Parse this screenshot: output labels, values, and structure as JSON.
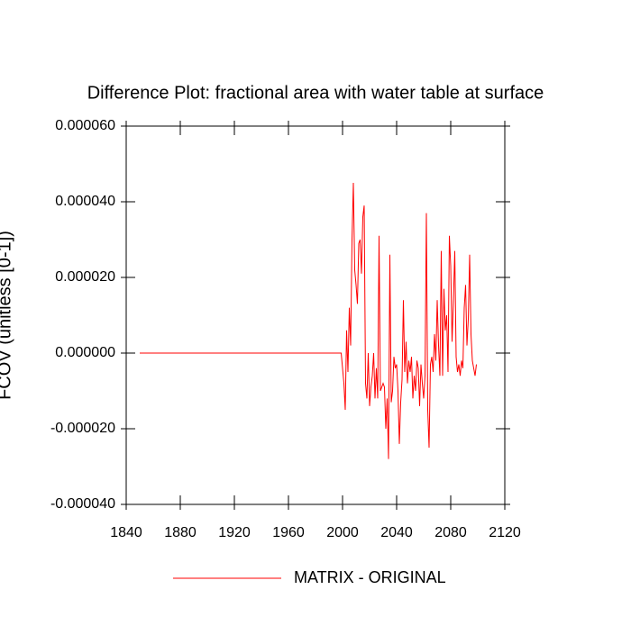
{
  "chart_data": {
    "type": "line",
    "title": "Difference Plot: fractional area with water table at surface",
    "y_label": "FCOV  (unitless [0-1])",
    "x": [
      1850,
      1999,
      2000,
      2001,
      2002,
      2003,
      2004,
      2005,
      2006,
      2007,
      2008,
      2009,
      2010,
      2011,
      2012,
      2013,
      2014,
      2015,
      2016,
      2017,
      2018,
      2019,
      2020,
      2021,
      2022,
      2023,
      2024,
      2025,
      2026,
      2027,
      2028,
      2029,
      2030,
      2031,
      2032,
      2033,
      2034,
      2035,
      2036,
      2037,
      2038,
      2039,
      2040,
      2041,
      2042,
      2043,
      2044,
      2045,
      2046,
      2047,
      2048,
      2049,
      2050,
      2051,
      2052,
      2053,
      2054,
      2055,
      2056,
      2057,
      2058,
      2059,
      2060,
      2061,
      2062,
      2063,
      2064,
      2065,
      2066,
      2067,
      2068,
      2069,
      2070,
      2071,
      2072,
      2073,
      2074,
      2075,
      2076,
      2077,
      2078,
      2079,
      2080,
      2081,
      2082,
      2083,
      2084,
      2085,
      2086,
      2087,
      2088,
      2089,
      2090,
      2091,
      2092,
      2093,
      2094,
      2095,
      2096,
      2097,
      2098,
      2099
    ],
    "series": [
      {
        "name": "MATRIX - ORIGINAL",
        "color": "#ff0000",
        "values": [
          0,
          0,
          -4e-06,
          -8e-06,
          -1.5e-05,
          6e-06,
          -5e-06,
          1.2e-05,
          2e-06,
          3e-05,
          4.5e-05,
          2.2e-05,
          1.8e-05,
          1.3e-05,
          2.9e-05,
          3e-05,
          2.1e-05,
          3.6e-05,
          3.9e-05,
          -8e-06,
          -1.2e-05,
          0,
          -1.4e-05,
          -9e-06,
          -6e-06,
          0,
          -1.2e-05,
          -4e-06,
          -1.2e-05,
          3.1e-05,
          -1e-05,
          -9e-06,
          -8e-06,
          -9e-06,
          -2e-05,
          -1.2e-05,
          -2.8e-05,
          2.6e-05,
          -1.3e-05,
          -1e-05,
          -1e-06,
          -4e-06,
          -3e-06,
          -1e-05,
          -2.4e-05,
          -1.3e-05,
          -7e-06,
          1.4e-05,
          -5e-06,
          3e-06,
          -8e-06,
          -2e-06,
          -5e-06,
          -1e-06,
          -1.2e-05,
          -6e-06,
          -1e-05,
          -2e-06,
          -4e-06,
          -1.4e-05,
          -3e-06,
          -8e-06,
          -1.2e-05,
          -6e-06,
          3.7e-05,
          -1.5e-05,
          -2.5e-05,
          -3e-06,
          -1e-06,
          -5e-06,
          5e-06,
          -2e-06,
          1.4e-05,
          2e-06,
          -6e-06,
          2.7e-05,
          -6e-06,
          1.7e-05,
          6e-06,
          1e-05,
          -5e-06,
          3.1e-05,
          2.3e-05,
          3e-06,
          1.4e-05,
          2.7e-05,
          -1e-06,
          -5e-06,
          -3e-06,
          -6e-06,
          -2e-06,
          -4e-06,
          1.2e-05,
          1.8e-05,
          2e-06,
          9e-06,
          2.6e-05,
          5e-06,
          -2e-06,
          -4e-06,
          -6e-06,
          -3e-06
        ]
      }
    ],
    "xlim": [
      1840,
      2120
    ],
    "xticks": [
      1840,
      1880,
      1920,
      1960,
      2000,
      2040,
      2080,
      2120
    ],
    "ylim": [
      -4e-05,
      6e-05
    ],
    "yticks": [
      {
        "value": -4e-05,
        "label": "-0.000040"
      },
      {
        "value": -2e-05,
        "label": "-0.000020"
      },
      {
        "value": 0,
        "label": "0.000000"
      },
      {
        "value": 2e-05,
        "label": "0.000020"
      },
      {
        "value": 4e-05,
        "label": "0.000040"
      },
      {
        "value": 6e-05,
        "label": "0.000060"
      }
    ],
    "legend": "bottom"
  }
}
